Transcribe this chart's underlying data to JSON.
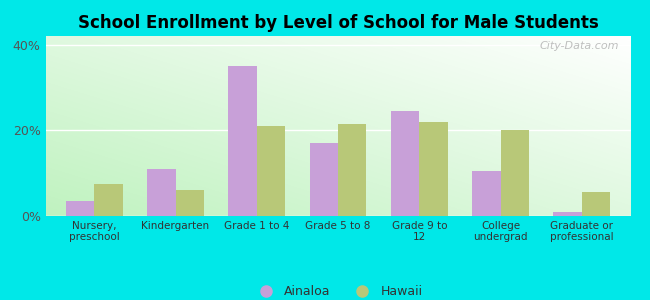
{
  "title": "School Enrollment by Level of School for Male Students",
  "categories": [
    "Nursery,\npreschool",
    "Kindergarten",
    "Grade 1 to 4",
    "Grade 5 to 8",
    "Grade 9 to\n12",
    "College\nundergrad",
    "Graduate or\nprofessional"
  ],
  "ainaloa": [
    3.5,
    11.0,
    35.0,
    17.0,
    24.5,
    10.5,
    1.0
  ],
  "hawaii": [
    7.5,
    6.0,
    21.0,
    21.5,
    22.0,
    20.0,
    5.5
  ],
  "ainaloa_color": "#c8a0d8",
  "hawaii_color": "#b8c878",
  "background_color": "#00e8e8",
  "ylim": [
    0,
    42
  ],
  "yticks": [
    0,
    20,
    40
  ],
  "ytick_labels": [
    "0%",
    "20%",
    "40%"
  ],
  "bar_width": 0.35,
  "legend_labels": [
    "Ainaloa",
    "Hawaii"
  ],
  "watermark": "City-Data.com"
}
